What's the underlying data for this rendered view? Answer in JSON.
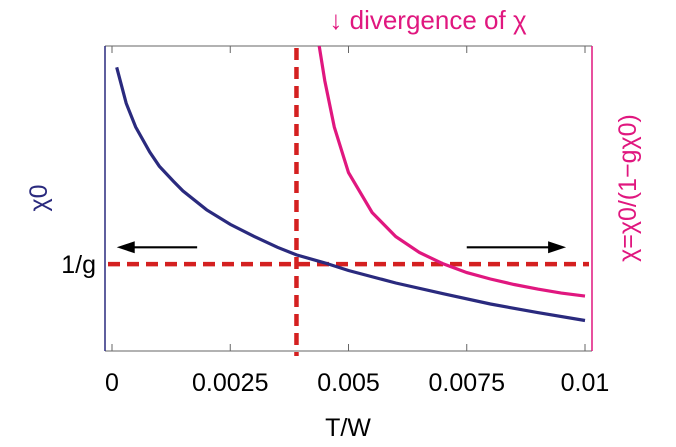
{
  "chart_data": {
    "type": "line",
    "title": "",
    "annotation": "↓ divergence of χ",
    "xlabel": "T/W",
    "ylabel_left": "χ0",
    "ylabel_right": "χ=χ0/(1−gχ0)",
    "xlim": [
      0,
      0.01
    ],
    "x_ticks": [
      0,
      0.0025,
      0.005,
      0.0075,
      0.01
    ],
    "x_tick_labels": [
      "0",
      "0.0025",
      "0.005",
      "0.0075",
      "0.01"
    ],
    "ylim": [
      0,
      1
    ],
    "y_tick_labels": [
      "1/g"
    ],
    "reference_lines": {
      "horizontal_level": 0.285,
      "horizontal_label": "1/g",
      "vertical_x": 0.0039
    },
    "series": [
      {
        "curve": "chi0",
        "axis": "left",
        "color": "#2a2a7e",
        "x": [
          0.0001,
          0.0003,
          0.0005,
          0.0008,
          0.001,
          0.0013,
          0.0015,
          0.002,
          0.0025,
          0.003,
          0.0035,
          0.0039,
          0.0045,
          0.005,
          0.006,
          0.007,
          0.008,
          0.009,
          0.01
        ],
        "y": [
          0.93,
          0.812,
          0.734,
          0.652,
          0.606,
          0.556,
          0.525,
          0.463,
          0.415,
          0.376,
          0.34,
          0.315,
          0.289,
          0.264,
          0.223,
          0.188,
          0.154,
          0.126,
          0.1
        ]
      },
      {
        "curve": "chi",
        "axis": "right",
        "color": "#e0177f",
        "x": [
          0.00438,
          0.0045,
          0.0047,
          0.005,
          0.0055,
          0.006,
          0.0065,
          0.007,
          0.0075,
          0.008,
          0.0085,
          0.009,
          0.0095,
          0.01
        ],
        "y": [
          1.0,
          0.886,
          0.734,
          0.585,
          0.454,
          0.375,
          0.323,
          0.286,
          0.257,
          0.236,
          0.218,
          0.203,
          0.19,
          0.18
        ]
      }
    ],
    "arrows": [
      {
        "points_to": "left",
        "x_from": 0.0018,
        "x_to": 0.0001,
        "y": 0.34
      },
      {
        "points_to": "right",
        "x_from": 0.0075,
        "x_to": 0.0096,
        "y": 0.34
      }
    ],
    "colors": {
      "frame": "#666666",
      "left_axis": "#2a2a7e",
      "right_axis": "#e0177f",
      "reference": "#d42020"
    },
    "grid": false,
    "legend": "none"
  }
}
